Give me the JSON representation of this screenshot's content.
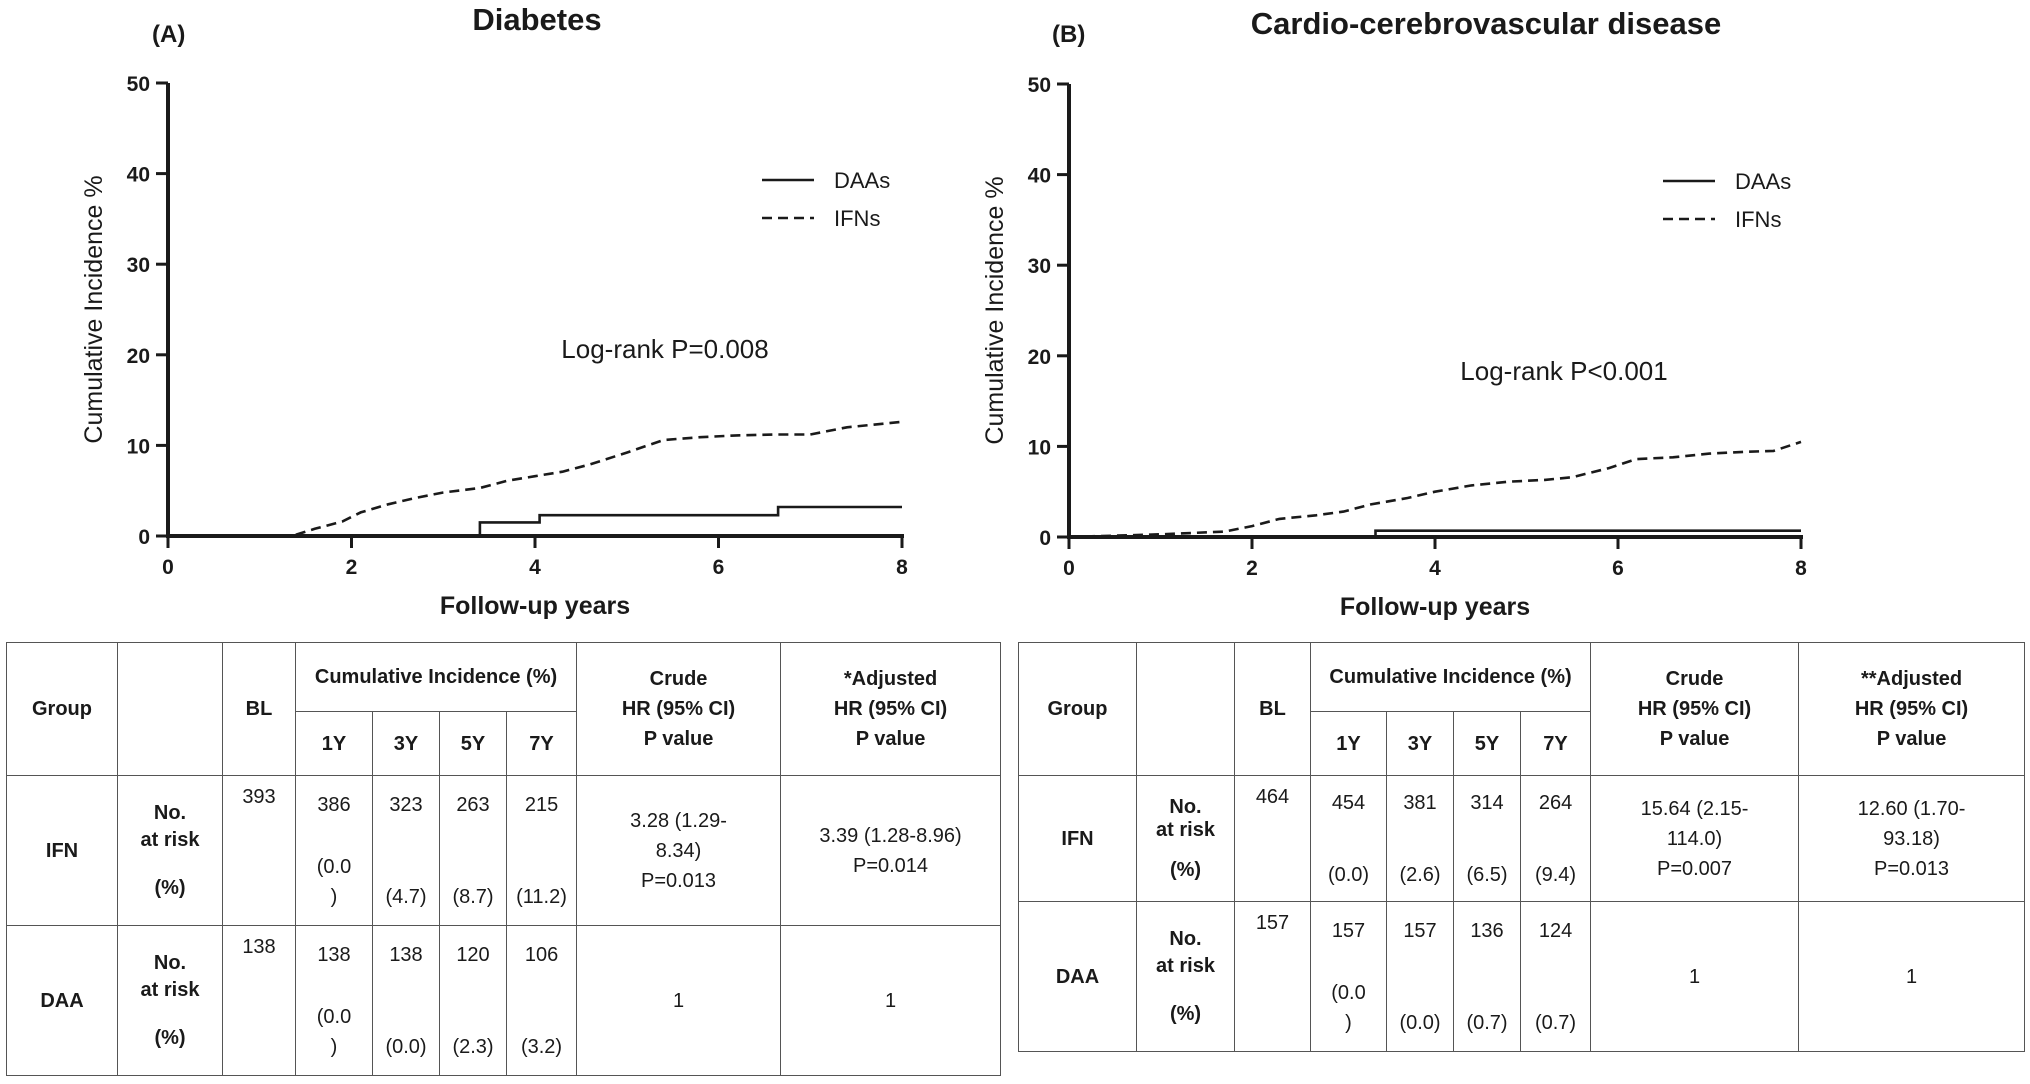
{
  "chart_data": [
    {
      "type": "line",
      "panel_label": "(A)",
      "title": "Diabetes",
      "xlabel": "Follow-up years",
      "ylabel": "Cumulative Incidence %",
      "xlim": [
        0,
        8
      ],
      "ylim": [
        0,
        50
      ],
      "xticks": [
        "0",
        "2",
        "4",
        "6",
        "8"
      ],
      "yticks": [
        "0",
        "10",
        "20",
        "30",
        "40",
        "50"
      ],
      "legend": {
        "position": "top-right",
        "entries": [
          "DAAs",
          "IFNs"
        ]
      },
      "annotation": "Log-rank P=0.008",
      "series": [
        {
          "name": "DAAs",
          "style": "solid",
          "x": [
            0,
            3.4,
            3.4,
            4.05,
            4.05,
            6.65,
            6.65,
            8
          ],
          "y": [
            0,
            0,
            1.5,
            1.5,
            2.3,
            2.3,
            3.2,
            3.2
          ]
        },
        {
          "name": "IFNs",
          "style": "dashed",
          "x": [
            0,
            1.35,
            1.6,
            1.9,
            2.1,
            2.4,
            2.7,
            3.0,
            3.4,
            3.7,
            4.0,
            4.3,
            4.6,
            5.0,
            5.4,
            5.8,
            6.2,
            6.6,
            7.0,
            7.4,
            8.0
          ],
          "y": [
            0,
            0,
            0.8,
            1.6,
            2.6,
            3.5,
            4.2,
            4.8,
            5.3,
            6.1,
            6.6,
            7.1,
            7.9,
            9.2,
            10.6,
            10.9,
            11.1,
            11.2,
            11.2,
            12.0,
            12.6
          ]
        }
      ]
    },
    {
      "type": "line",
      "panel_label": "(B)",
      "title": "Cardio-cerebrovascular disease",
      "xlabel": "Follow-up years",
      "ylabel": "Cumulative Incidence %",
      "xlim": [
        0,
        8
      ],
      "ylim": [
        0,
        50
      ],
      "xticks": [
        "0",
        "2",
        "4",
        "6",
        "8"
      ],
      "yticks": [
        "0",
        "10",
        "20",
        "30",
        "40",
        "50"
      ],
      "legend": {
        "position": "top-right",
        "entries": [
          "DAAs",
          "IFNs"
        ]
      },
      "annotation": "Log-rank P<0.001",
      "series": [
        {
          "name": "DAAs",
          "style": "solid",
          "x": [
            0,
            3.35,
            3.35,
            8
          ],
          "y": [
            0,
            0,
            0.7,
            0.7
          ]
        },
        {
          "name": "IFNs",
          "style": "dashed",
          "x": [
            0,
            1.0,
            1.7,
            2.0,
            2.3,
            2.7,
            3.0,
            3.3,
            3.7,
            4.0,
            4.4,
            4.8,
            5.2,
            5.5,
            5.9,
            6.2,
            6.6,
            7.0,
            7.4,
            7.7,
            8.0
          ],
          "y": [
            0,
            0.3,
            0.6,
            1.2,
            2.0,
            2.4,
            2.8,
            3.6,
            4.3,
            5.0,
            5.7,
            6.1,
            6.3,
            6.6,
            7.6,
            8.6,
            8.8,
            9.2,
            9.4,
            9.5,
            10.5
          ]
        }
      ]
    }
  ],
  "tables": [
    {
      "headers": {
        "group": "Group",
        "bl": "BL",
        "cumulative": "Cumulative Incidence (%)",
        "years": [
          "1Y",
          "3Y",
          "5Y",
          "7Y"
        ],
        "crude": [
          "Crude",
          "HR (95% CI)",
          "P value"
        ],
        "adjusted": [
          "*Adjusted",
          "HR (95% CI)",
          "P value"
        ]
      },
      "rows": [
        {
          "group": "IFN",
          "label_no": "No.",
          "label_risk": "at risk",
          "label_pct": "(%)",
          "bl": "393",
          "at_risk": [
            "386",
            "323",
            "263",
            "215"
          ],
          "pct": [
            "(0.0\n)",
            "(4.7)",
            "(8.7)",
            "(11.2)"
          ],
          "crude": [
            "3.28 (1.29-",
            "8.34)",
            "P=0.013"
          ],
          "adjusted": [
            "3.39 (1.28-8.96)",
            "P=0.014"
          ]
        },
        {
          "group": "DAA",
          "label_no": "No.",
          "label_risk": "at risk",
          "label_pct": "(%)",
          "bl": "138",
          "at_risk": [
            "138",
            "138",
            "120",
            "106"
          ],
          "pct": [
            "(0.0\n)",
            "(0.0)",
            "(2.3)",
            "(3.2)"
          ],
          "crude": [
            "1"
          ],
          "adjusted": [
            "1"
          ]
        }
      ]
    },
    {
      "headers": {
        "group": "Group",
        "bl": "BL",
        "cumulative": "Cumulative Incidence (%)",
        "years": [
          "1Y",
          "3Y",
          "5Y",
          "7Y"
        ],
        "crude": [
          "Crude",
          "HR (95% CI)",
          "P value"
        ],
        "adjusted": [
          "**Adjusted",
          "HR (95% CI)",
          "P value"
        ]
      },
      "rows": [
        {
          "group": "IFN",
          "label_no": "No.",
          "label_risk": "at risk",
          "label_pct": "(%)",
          "bl": "464",
          "at_risk": [
            "454",
            "381",
            "314",
            "264"
          ],
          "pct": [
            "(0.0)",
            "(2.6)",
            "(6.5)",
            "(9.4)"
          ],
          "crude": [
            "15.64 (2.15-",
            "114.0)",
            "P=0.007"
          ],
          "adjusted": [
            "12.60 (1.70-",
            "93.18)",
            "P=0.013"
          ]
        },
        {
          "group": "DAA",
          "label_no": "No.",
          "label_risk": "at risk",
          "label_pct": "(%)",
          "bl": "157",
          "at_risk": [
            "157",
            "157",
            "136",
            "124"
          ],
          "pct": [
            "(0.0\n)",
            "(0.0)",
            "(0.7)",
            "(0.7)"
          ],
          "crude": [
            "1"
          ],
          "adjusted": [
            "1"
          ]
        }
      ]
    }
  ]
}
